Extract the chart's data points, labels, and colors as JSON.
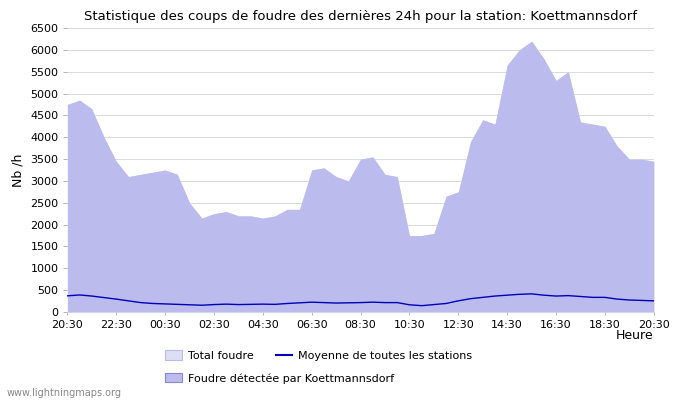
{
  "title": "Statistique des coups de foudre des dernières 24h pour la station: Koettmannsdorf",
  "xlabel": "Heure",
  "ylabel": "Nb /h",
  "ylim": [
    0,
    6500
  ],
  "yticks": [
    0,
    500,
    1000,
    1500,
    2000,
    2500,
    3000,
    3500,
    4000,
    4500,
    5000,
    5500,
    6000,
    6500
  ],
  "xtick_labels": [
    "20:30",
    "22:30",
    "00:30",
    "02:30",
    "04:30",
    "06:30",
    "08:30",
    "10:30",
    "12:30",
    "14:30",
    "16:30",
    "18:30",
    "20:30"
  ],
  "watermark": "www.lightningmaps.org",
  "total_foudre_color": "#ddddf5",
  "koett_color": "#aaaadd",
  "moyenne_color": "#0000bb",
  "total_foudre": [
    4750,
    4850,
    4650,
    4000,
    3450,
    3100,
    3150,
    3200,
    3250,
    3150,
    2500,
    2150,
    2250,
    2300,
    2200,
    2200,
    2150,
    2200,
    2350,
    2350,
    3250,
    3300,
    3100,
    3000,
    3500,
    3550,
    3150,
    3100,
    1750,
    1750,
    1800,
    2650,
    2750,
    3900,
    4400,
    4300,
    5650,
    6000,
    6200,
    5800,
    5300,
    5500,
    4350,
    4300,
    4250,
    3800,
    3500,
    3500,
    3450
  ],
  "koett_foudre": [
    4750,
    4850,
    4650,
    4000,
    3450,
    3100,
    3150,
    3200,
    3250,
    3150,
    2500,
    2150,
    2250,
    2300,
    2200,
    2200,
    2150,
    2200,
    2350,
    2350,
    3250,
    3300,
    3100,
    3000,
    3500,
    3550,
    3150,
    3100,
    1750,
    1750,
    1800,
    2650,
    2750,
    3900,
    4400,
    4300,
    5650,
    6000,
    6200,
    5800,
    5300,
    5500,
    4350,
    4300,
    4250,
    3800,
    3500,
    3500,
    3450
  ],
  "moyenne": [
    370,
    390,
    365,
    330,
    295,
    255,
    215,
    195,
    185,
    175,
    165,
    155,
    170,
    180,
    170,
    175,
    180,
    175,
    195,
    210,
    225,
    215,
    205,
    210,
    215,
    225,
    215,
    215,
    165,
    145,
    170,
    195,
    255,
    305,
    335,
    365,
    385,
    405,
    415,
    385,
    365,
    375,
    355,
    335,
    335,
    295,
    275,
    265,
    255
  ]
}
